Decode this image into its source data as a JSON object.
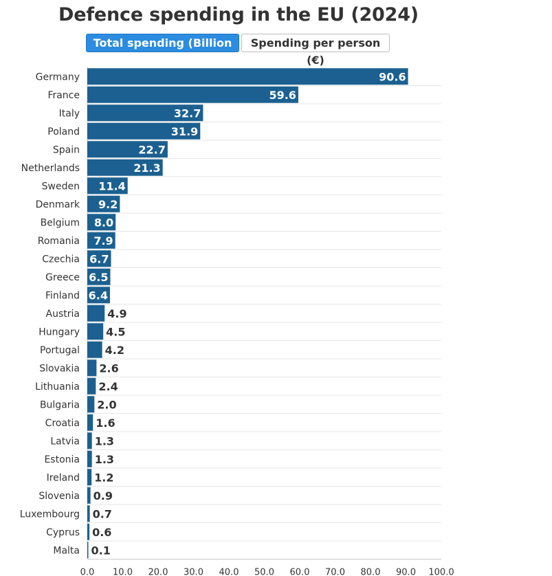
{
  "title": "Defence spending in the EU (2024)",
  "toggles": {
    "active_label": "Total spending (Billion €)",
    "inactive_label": "Spending per person (€)"
  },
  "colors": {
    "bar": "#1b6090",
    "accent": "#2b8ce0",
    "grid": "#e6e6e6"
  },
  "chart_data": {
    "type": "bar",
    "orientation": "horizontal",
    "title": "Defence spending in the EU (2024)",
    "xlabel": "",
    "ylabel": "",
    "xlim": [
      0,
      100
    ],
    "grid": true,
    "unit": "Billion €",
    "categories": [
      "Germany",
      "France",
      "Italy",
      "Poland",
      "Spain",
      "Netherlands",
      "Sweden",
      "Denmark",
      "Belgium",
      "Romania",
      "Czechia",
      "Greece",
      "Finland",
      "Austria",
      "Hungary",
      "Portugal",
      "Slovakia",
      "Lithuania",
      "Bulgaria",
      "Croatia",
      "Latvia",
      "Estonia",
      "Ireland",
      "Slovenia",
      "Luxembourg",
      "Cyprus",
      "Malta"
    ],
    "values": [
      90.6,
      59.6,
      32.7,
      31.9,
      22.7,
      21.3,
      11.4,
      9.2,
      8.0,
      7.9,
      6.7,
      6.5,
      6.4,
      4.9,
      4.5,
      4.2,
      2.6,
      2.4,
      2.0,
      1.6,
      1.3,
      1.3,
      1.2,
      0.9,
      0.7,
      0.6,
      0.1
    ],
    "value_labels": [
      "90.6",
      "59.6",
      "32.7",
      "31.9",
      "22.7",
      "21.3",
      "11.4",
      "9.2",
      "8.0",
      "7.9",
      "6.7",
      "6.5",
      "6.4",
      "4.9",
      "4.5",
      "4.2",
      "2.6",
      "2.4",
      "2.0",
      "1.6",
      "1.3",
      "1.3",
      "1.2",
      "0.9",
      "0.7",
      "0.6",
      "0.1"
    ],
    "tick_labels": [
      "0.0",
      "10.0",
      "20.0",
      "30.0",
      "40.0",
      "50.0",
      "60.0",
      "70.0",
      "80.0",
      "90.0",
      "100.0"
    ]
  }
}
